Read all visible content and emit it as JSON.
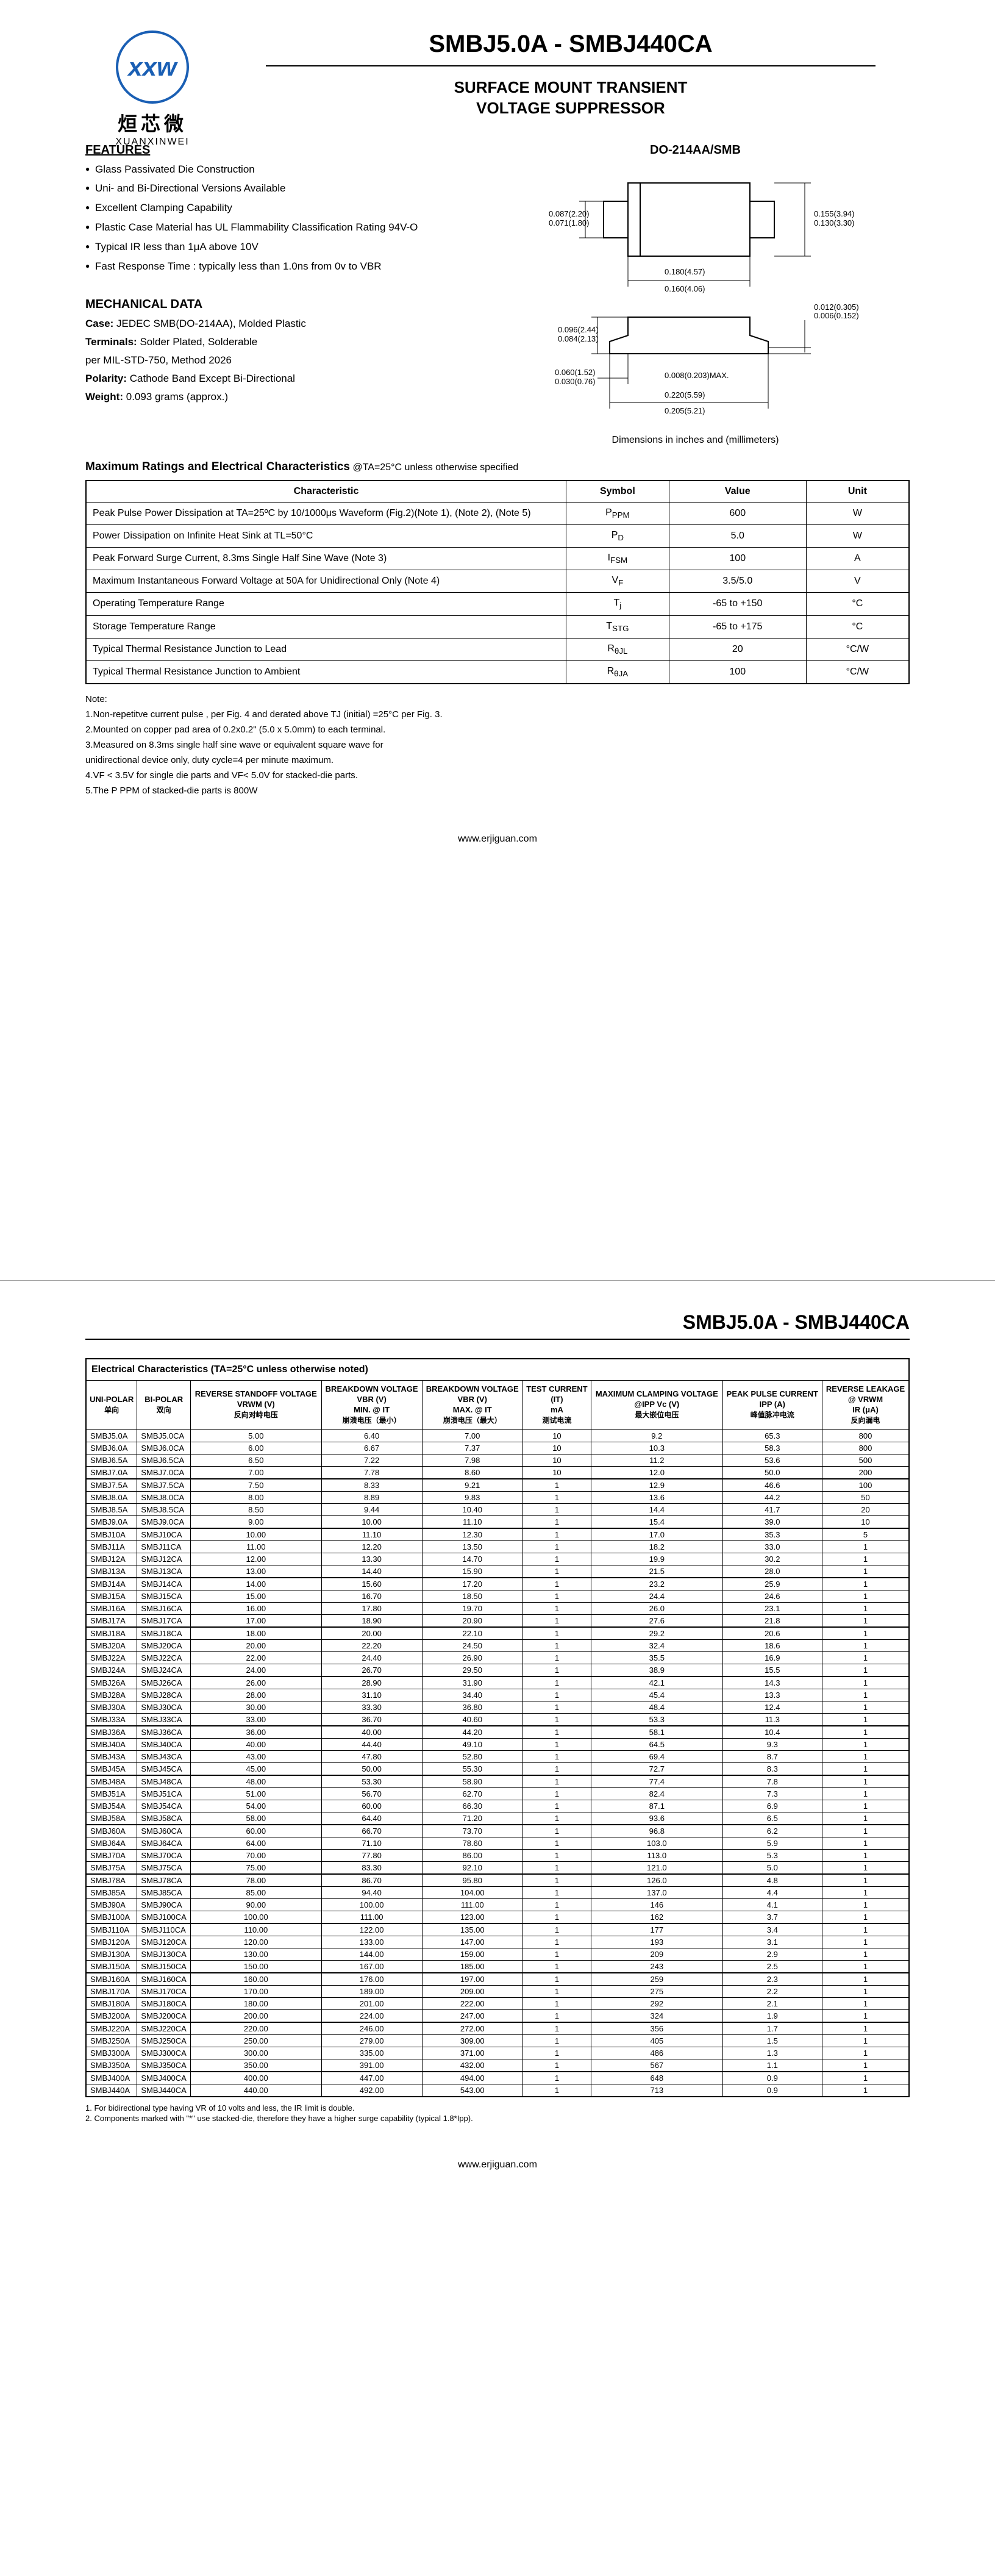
{
  "logo": {
    "brand_cn": "烜芯微",
    "brand_en": "XUANXINWEI",
    "mark": "xxw"
  },
  "header": {
    "title": "SMBJ5.0A - SMBJ440CA",
    "subtitle_l1": "SURFACE MOUNT TRANSIENT",
    "subtitle_l2": "VOLTAGE SUPPRESSOR"
  },
  "features": {
    "title": "FEATURES",
    "items": [
      "Glass Passivated Die Construction",
      "Uni- and Bi-Directional Versions Available",
      "Excellent Clamping Capability",
      "Plastic Case Material has UL Flammability Classification Rating 94V-O",
      "Typical IR less than 1μA above 10V",
      "Fast Response Time : typically less than 1.0ns from 0v to VBR"
    ]
  },
  "mechanical": {
    "title": "MECHANICAL DATA",
    "lines": [
      {
        "label": "Case:",
        "text": " JEDEC SMB(DO-214AA), Molded Plastic"
      },
      {
        "label": "Terminals:",
        "text": " Solder Plated, Solderable"
      },
      {
        "label": "",
        "text": "per MIL-STD-750, Method 2026"
      },
      {
        "label": "Polarity:",
        "text": " Cathode Band Except Bi-Directional"
      },
      {
        "label": "Weight:",
        "text": " 0.093 grams (approx.)"
      }
    ]
  },
  "package": {
    "label": "DO-214AA/SMB",
    "caption": "Dimensions in inches and (millimeters)",
    "dims": {
      "d1a": "0.087(2.20)",
      "d1b": "0.071(1.80)",
      "d2a": "0.155(3.94)",
      "d2b": "0.130(3.30)",
      "d3a": "0.180(4.57)",
      "d3b": "0.160(4.06)",
      "d4a": "0.096(2.44)",
      "d4b": "0.084(2.13)",
      "d5a": "0.012(0.305)",
      "d5b": "0.006(0.152)",
      "d6a": "0.060(1.52)",
      "d6b": "0.030(0.76)",
      "d7": "0.008(0.203)MAX.",
      "d8a": "0.220(5.59)",
      "d8b": "0.205(5.21)"
    }
  },
  "ratings": {
    "title": "Maximum Ratings and Electrical Characteristics",
    "cond": " @TA=25°C unless otherwise specified",
    "headers": [
      "Characteristic",
      "Symbol",
      "Value",
      "Unit"
    ],
    "rows": [
      {
        "char": "Peak Pulse Power Dissipation at TA=25ºC by 10/1000μs Waveform (Fig.2)(Note 1), (Note 2), (Note 5)",
        "sym": "P<sub>PPM</sub>",
        "val": "600",
        "unit": "W"
      },
      {
        "char": "Power Dissipation on Infinite Heat Sink at TL=50°C",
        "sym": "P<sub>D</sub>",
        "val": "5.0",
        "unit": "W"
      },
      {
        "char": "Peak Forward Surge Current, 8.3ms Single Half Sine Wave (Note 3)",
        "sym": "I<sub>FSM</sub>",
        "val": "100",
        "unit": "A"
      },
      {
        "char": "Maximum Instantaneous Forward Voltage at 50A for Unidirectional Only (Note 4)",
        "sym": "V<sub>F</sub>",
        "val": "3.5/5.0",
        "unit": "V"
      },
      {
        "char": "Operating Temperature Range",
        "sym": "T<sub>j</sub>",
        "val": "-65 to +150",
        "unit": "°C"
      },
      {
        "char": "Storage Temperature Range",
        "sym": "T<sub>STG</sub>",
        "val": "-65 to +175",
        "unit": "°C"
      },
      {
        "char": "Typical Thermal Resistance Junction to Lead",
        "sym": "R<sub>θJL</sub>",
        "val": "20",
        "unit": "°C/W"
      },
      {
        "char": "Typical Thermal Resistance Junction to Ambient",
        "sym": "R<sub>θJA</sub>",
        "val": "100",
        "unit": "°C/W"
      }
    ]
  },
  "notes": {
    "label": "Note:",
    "items": [
      "1.Non-repetitve current pulse , per Fig. 4 and derated above TJ (initial) =25°C per Fig. 3.",
      "2.Mounted on copper pad area of 0.2x0.2\" (5.0 x 5.0mm) to each terminal.",
      "3.Measured on 8.3ms single half sine wave or equivalent square wave for",
      "   unidirectional device only, duty cycle=4 per minute maximum.",
      "4.VF < 3.5V for single die parts and VF< 5.0V for stacked-die parts.",
      "5.The P PPM of stacked-die parts is 800W"
    ]
  },
  "footer": {
    "url": "www.erjiguan.com"
  },
  "page2": {
    "title": "SMBJ5.0A - SMBJ440CA",
    "ec_title": "Electrical Characteristics (TA=25°C unless otherwise noted)",
    "headers": {
      "uni": "UNI-POLAR",
      "uni_cn": "单向",
      "bi": "BI-POLAR",
      "bi_cn": "双向",
      "vrwm": "REVERSE STANDOFF VOLTAGE",
      "vrwm2": "VRWM (V)",
      "vrwm_cn": "反向对峙电压",
      "vbr_min": "BREAKDOWN VOLTAGE",
      "vbr_min2": "VBR (V)",
      "vbr_min3": "MIN. @ IT",
      "vbr_min_cn": "崩溃电压（最小）",
      "vbr_max": "BREAKDOWN VOLTAGE",
      "vbr_max2": "VBR (V)",
      "vbr_max3": "MAX. @ IT",
      "vbr_max_cn": "崩溃电压（最大）",
      "it": "TEST CURRENT",
      "it2": "(IT)",
      "it3": "mA",
      "it_cn": "测试电流",
      "vc": "MAXIMUM CLAMPING VOLTAGE",
      "vc2": "@IPP Vc (V)",
      "vc_cn": "最大嵌位电压",
      "ipp": "PEAK PULSE CURRENT",
      "ipp2": "IPP (A)",
      "ipp_cn": "峰值脉冲电流",
      "ir": "REVERSE LEAKAGE",
      "ir2": "@ VRWM",
      "ir3": "IR (μA)",
      "ir_cn": "反向漏电"
    },
    "groups": [
      [
        [
          "SMBJ5.0A",
          "SMBJ5.0CA",
          "5.00",
          "6.40",
          "7.00",
          "10",
          "9.2",
          "65.3",
          "800"
        ],
        [
          "SMBJ6.0A",
          "SMBJ6.0CA",
          "6.00",
          "6.67",
          "7.37",
          "10",
          "10.3",
          "58.3",
          "800"
        ],
        [
          "SMBJ6.5A",
          "SMBJ6.5CA",
          "6.50",
          "7.22",
          "7.98",
          "10",
          "11.2",
          "53.6",
          "500"
        ],
        [
          "SMBJ7.0A",
          "SMBJ7.0CA",
          "7.00",
          "7.78",
          "8.60",
          "10",
          "12.0",
          "50.0",
          "200"
        ]
      ],
      [
        [
          "SMBJ7.5A",
          "SMBJ7.5CA",
          "7.50",
          "8.33",
          "9.21",
          "1",
          "12.9",
          "46.6",
          "100"
        ],
        [
          "SMBJ8.0A",
          "SMBJ8.0CA",
          "8.00",
          "8.89",
          "9.83",
          "1",
          "13.6",
          "44.2",
          "50"
        ],
        [
          "SMBJ8.5A",
          "SMBJ8.5CA",
          "8.50",
          "9.44",
          "10.40",
          "1",
          "14.4",
          "41.7",
          "20"
        ],
        [
          "SMBJ9.0A",
          "SMBJ9.0CA",
          "9.00",
          "10.00",
          "11.10",
          "1",
          "15.4",
          "39.0",
          "10"
        ]
      ],
      [
        [
          "SMBJ10A",
          "SMBJ10CA",
          "10.00",
          "11.10",
          "12.30",
          "1",
          "17.0",
          "35.3",
          "5"
        ],
        [
          "SMBJ11A",
          "SMBJ11CA",
          "11.00",
          "12.20",
          "13.50",
          "1",
          "18.2",
          "33.0",
          "1"
        ],
        [
          "SMBJ12A",
          "SMBJ12CA",
          "12.00",
          "13.30",
          "14.70",
          "1",
          "19.9",
          "30.2",
          "1"
        ],
        [
          "SMBJ13A",
          "SMBJ13CA",
          "13.00",
          "14.40",
          "15.90",
          "1",
          "21.5",
          "28.0",
          "1"
        ]
      ],
      [
        [
          "SMBJ14A",
          "SMBJ14CA",
          "14.00",
          "15.60",
          "17.20",
          "1",
          "23.2",
          "25.9",
          "1"
        ],
        [
          "SMBJ15A",
          "SMBJ15CA",
          "15.00",
          "16.70",
          "18.50",
          "1",
          "24.4",
          "24.6",
          "1"
        ],
        [
          "SMBJ16A",
          "SMBJ16CA",
          "16.00",
          "17.80",
          "19.70",
          "1",
          "26.0",
          "23.1",
          "1"
        ],
        [
          "SMBJ17A",
          "SMBJ17CA",
          "17.00",
          "18.90",
          "20.90",
          "1",
          "27.6",
          "21.8",
          "1"
        ]
      ],
      [
        [
          "SMBJ18A",
          "SMBJ18CA",
          "18.00",
          "20.00",
          "22.10",
          "1",
          "29.2",
          "20.6",
          "1"
        ],
        [
          "SMBJ20A",
          "SMBJ20CA",
          "20.00",
          "22.20",
          "24.50",
          "1",
          "32.4",
          "18.6",
          "1"
        ],
        [
          "SMBJ22A",
          "SMBJ22CA",
          "22.00",
          "24.40",
          "26.90",
          "1",
          "35.5",
          "16.9",
          "1"
        ],
        [
          "SMBJ24A",
          "SMBJ24CA",
          "24.00",
          "26.70",
          "29.50",
          "1",
          "38.9",
          "15.5",
          "1"
        ]
      ],
      [
        [
          "SMBJ26A",
          "SMBJ26CA",
          "26.00",
          "28.90",
          "31.90",
          "1",
          "42.1",
          "14.3",
          "1"
        ],
        [
          "SMBJ28A",
          "SMBJ28CA",
          "28.00",
          "31.10",
          "34.40",
          "1",
          "45.4",
          "13.3",
          "1"
        ],
        [
          "SMBJ30A",
          "SMBJ30CA",
          "30.00",
          "33.30",
          "36.80",
          "1",
          "48.4",
          "12.4",
          "1"
        ],
        [
          "SMBJ33A",
          "SMBJ33CA",
          "33.00",
          "36.70",
          "40.60",
          "1",
          "53.3",
          "11.3",
          "1"
        ]
      ],
      [
        [
          "SMBJ36A",
          "SMBJ36CA",
          "36.00",
          "40.00",
          "44.20",
          "1",
          "58.1",
          "10.4",
          "1"
        ],
        [
          "SMBJ40A",
          "SMBJ40CA",
          "40.00",
          "44.40",
          "49.10",
          "1",
          "64.5",
          "9.3",
          "1"
        ],
        [
          "SMBJ43A",
          "SMBJ43CA",
          "43.00",
          "47.80",
          "52.80",
          "1",
          "69.4",
          "8.7",
          "1"
        ],
        [
          "SMBJ45A",
          "SMBJ45CA",
          "45.00",
          "50.00",
          "55.30",
          "1",
          "72.7",
          "8.3",
          "1"
        ]
      ],
      [
        [
          "SMBJ48A",
          "SMBJ48CA",
          "48.00",
          "53.30",
          "58.90",
          "1",
          "77.4",
          "7.8",
          "1"
        ],
        [
          "SMBJ51A",
          "SMBJ51CA",
          "51.00",
          "56.70",
          "62.70",
          "1",
          "82.4",
          "7.3",
          "1"
        ],
        [
          "SMBJ54A",
          "SMBJ54CA",
          "54.00",
          "60.00",
          "66.30",
          "1",
          "87.1",
          "6.9",
          "1"
        ],
        [
          "SMBJ58A",
          "SMBJ58CA",
          "58.00",
          "64.40",
          "71.20",
          "1",
          "93.6",
          "6.5",
          "1"
        ]
      ],
      [
        [
          "SMBJ60A",
          "SMBJ60CA",
          "60.00",
          "66.70",
          "73.70",
          "1",
          "96.8",
          "6.2",
          "1"
        ],
        [
          "SMBJ64A",
          "SMBJ64CA",
          "64.00",
          "71.10",
          "78.60",
          "1",
          "103.0",
          "5.9",
          "1"
        ],
        [
          "SMBJ70A",
          "SMBJ70CA",
          "70.00",
          "77.80",
          "86.00",
          "1",
          "113.0",
          "5.3",
          "1"
        ],
        [
          "SMBJ75A",
          "SMBJ75CA",
          "75.00",
          "83.30",
          "92.10",
          "1",
          "121.0",
          "5.0",
          "1"
        ]
      ],
      [
        [
          "SMBJ78A",
          "SMBJ78CA",
          "78.00",
          "86.70",
          "95.80",
          "1",
          "126.0",
          "4.8",
          "1"
        ],
        [
          "SMBJ85A",
          "SMBJ85CA",
          "85.00",
          "94.40",
          "104.00",
          "1",
          "137.0",
          "4.4",
          "1"
        ],
        [
          "SMBJ90A",
          "SMBJ90CA",
          "90.00",
          "100.00",
          "111.00",
          "1",
          "146",
          "4.1",
          "1"
        ],
        [
          "SMBJ100A",
          "SMBJ100CA",
          "100.00",
          "111.00",
          "123.00",
          "1",
          "162",
          "3.7",
          "1"
        ]
      ],
      [
        [
          "SMBJ110A",
          "SMBJ110CA",
          "110.00",
          "122.00",
          "135.00",
          "1",
          "177",
          "3.4",
          "1"
        ],
        [
          "SMBJ120A",
          "SMBJ120CA",
          "120.00",
          "133.00",
          "147.00",
          "1",
          "193",
          "3.1",
          "1"
        ],
        [
          "SMBJ130A",
          "SMBJ130CA",
          "130.00",
          "144.00",
          "159.00",
          "1",
          "209",
          "2.9",
          "1"
        ],
        [
          "SMBJ150A",
          "SMBJ150CA",
          "150.00",
          "167.00",
          "185.00",
          "1",
          "243",
          "2.5",
          "1"
        ]
      ],
      [
        [
          "SMBJ160A",
          "SMBJ160CA",
          "160.00",
          "176.00",
          "197.00",
          "1",
          "259",
          "2.3",
          "1"
        ],
        [
          "SMBJ170A",
          "SMBJ170CA",
          "170.00",
          "189.00",
          "209.00",
          "1",
          "275",
          "2.2",
          "1"
        ],
        [
          "SMBJ180A",
          "SMBJ180CA",
          "180.00",
          "201.00",
          "222.00",
          "1",
          "292",
          "2.1",
          "1"
        ],
        [
          "SMBJ200A",
          "SMBJ200CA",
          "200.00",
          "224.00",
          "247.00",
          "1",
          "324",
          "1.9",
          "1"
        ]
      ],
      [
        [
          "SMBJ220A",
          "SMBJ220CA",
          "220.00",
          "246.00",
          "272.00",
          "1",
          "356",
          "1.7",
          "1"
        ],
        [
          "SMBJ250A",
          "SMBJ250CA",
          "250.00",
          "279.00",
          "309.00",
          "1",
          "405",
          "1.5",
          "1"
        ],
        [
          "SMBJ300A",
          "SMBJ300CA",
          "300.00",
          "335.00",
          "371.00",
          "1",
          "486",
          "1.3",
          "1"
        ],
        [
          "SMBJ350A",
          "SMBJ350CA",
          "350.00",
          "391.00",
          "432.00",
          "1",
          "567",
          "1.1",
          "1"
        ]
      ],
      [
        [
          "SMBJ400A",
          "SMBJ400CA",
          "400.00",
          "447.00",
          "494.00",
          "1",
          "648",
          "0.9",
          "1"
        ],
        [
          "SMBJ440A",
          "SMBJ440CA",
          "440.00",
          "492.00",
          "543.00",
          "1",
          "713",
          "0.9",
          "1"
        ]
      ]
    ],
    "ec_notes": [
      "1. For bidirectional type having VR of 10 volts and less, the IR limit is double.",
      "2. Components marked with \"*\" use stacked-die, therefore they have a higher surge capability (typical 1.8*Ipp)."
    ]
  }
}
